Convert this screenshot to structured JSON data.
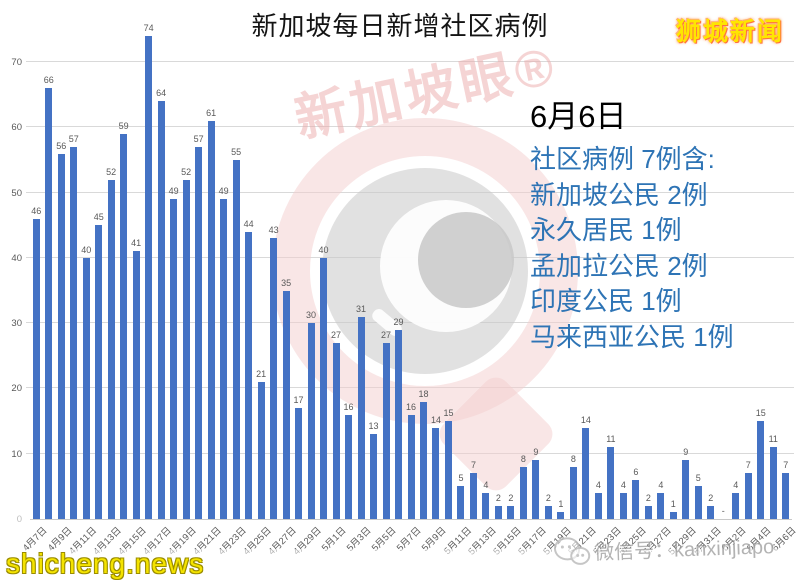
{
  "branding": {
    "logo_text": "狮城新闻",
    "website": "shicheng.news",
    "wechat_label": "微信号：kanxinjiapo"
  },
  "watermarks": {
    "center_text": "新加坡眼®",
    "wechat_icon": "wechat-icon"
  },
  "annotation": {
    "date": "6月6日",
    "lines": [
      "社区病例 7例含:",
      "新加坡公民 2例",
      "永久居民 1例",
      "孟加拉公民 2例",
      "印度公民 1例",
      "马来西亚公民 1例"
    ]
  },
  "chart_data": {
    "type": "bar",
    "title": "新加坡每日新增社区病例",
    "bar_color": "#4472C4",
    "grid": true,
    "ylim": [
      0,
      74
    ],
    "yticks": [
      0,
      10,
      20,
      30,
      40,
      50,
      60,
      70
    ],
    "xtick_interval": 2,
    "x": [
      "4月7日",
      "4月8日",
      "4月9日",
      "4月10日",
      "4月11日",
      "4月12日",
      "4月13日",
      "4月14日",
      "4月15日",
      "4月16日",
      "4月17日",
      "4月18日",
      "4月19日",
      "4月20日",
      "4月21日",
      "4月22日",
      "4月23日",
      "4月24日",
      "4月25日",
      "4月26日",
      "4月27日",
      "4月28日",
      "4月29日",
      "4月30日",
      "5月1日",
      "5月2日",
      "5月3日",
      "5月4日",
      "5月5日",
      "5月6日",
      "5月7日",
      "5月8日",
      "5月9日",
      "5月10日",
      "5月11日",
      "5月12日",
      "5月13日",
      "5月14日",
      "5月15日",
      "5月16日",
      "5月17日",
      "5月18日",
      "5月19日",
      "5月20日",
      "5月21日",
      "5月22日",
      "5月23日",
      "5月24日",
      "5月25日",
      "5月26日",
      "5月27日",
      "5月28日",
      "5月29日",
      "5月30日",
      "5月31日",
      "6月1日",
      "6月2日",
      "6月3日",
      "6月4日",
      "6月5日",
      "6月6日"
    ],
    "values": [
      46,
      66,
      56,
      57,
      40,
      45,
      52,
      59,
      41,
      74,
      64,
      49,
      52,
      57,
      61,
      49,
      55,
      44,
      21,
      43,
      35,
      17,
      30,
      40,
      27,
      16,
      31,
      13,
      27,
      29,
      16,
      18,
      14,
      15,
      5,
      7,
      4,
      2,
      2,
      8,
      9,
      2,
      1,
      8,
      14,
      4,
      11,
      4,
      6,
      2,
      4,
      1,
      9,
      5,
      2,
      0,
      4,
      7,
      15,
      11,
      7
    ],
    "bar_labels": [
      "46",
      "66",
      "56",
      "57",
      "40",
      "45",
      "52",
      "59",
      "41",
      "74",
      "64",
      "49",
      "52",
      "57",
      "61",
      "49",
      "55",
      "44",
      "21",
      "43",
      "35",
      "17",
      "30",
      "40",
      "27",
      "16",
      "31",
      "13",
      "27",
      "29",
      "16",
      "18",
      "14",
      "15",
      "5",
      "7",
      "4",
      "2",
      "2",
      "8",
      "9",
      "2",
      "1",
      "8",
      "14",
      "4",
      "11",
      "4",
      "6",
      "2",
      "4",
      "1",
      "9",
      "5",
      "2",
      "-",
      "4",
      "7",
      "15",
      "11",
      "7"
    ]
  }
}
